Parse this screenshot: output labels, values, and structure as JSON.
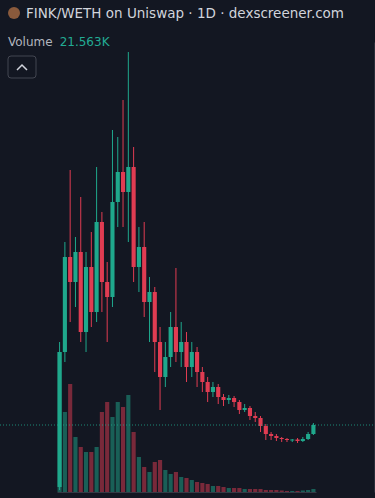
{
  "chart_data": {
    "type": "candlestick",
    "title": "FINK/WETH on Uniswap · 1D · dexscreener.com",
    "categories": [
      null,
      null,
      null,
      null,
      null,
      null,
      null,
      null,
      null,
      null,
      null,
      null,
      null,
      null,
      null,
      null,
      null,
      null,
      null,
      null,
      null,
      null,
      null,
      null,
      null,
      null,
      null,
      null,
      null,
      null,
      null,
      null,
      null,
      null,
      null,
      null,
      null,
      null,
      null,
      null,
      null,
      null,
      null,
      null,
      null,
      null,
      null,
      null,
      null
    ],
    "ylim": [
      0,
      450
    ],
    "y2lim": [
      0,
      3240000
    ],
    "tick_labels": false,
    "legend": "top-left",
    "series": [
      {
        "type": "candlestick",
        "open": [
          5,
          140,
          235,
          210,
          240,
          160,
          225,
          180,
          270,
          210,
          195,
          290,
          320,
          300,
          325,
          225,
          245,
          190,
          200,
          150,
          115,
          135,
          165,
          140,
          150,
          125,
          140,
          120,
          110,
          100,
          105,
          95,
          92,
          94,
          90,
          82,
          84,
          76,
          74,
          66,
          58,
          56,
          54,
          53,
          52,
          52.5,
          51,
          53,
          58
        ],
        "high": [
          150,
          250,
          322,
          255,
          295,
          240,
          260,
          325,
          280,
          230,
          362,
          355,
          392,
          440,
          345,
          265,
          270,
          215,
          205,
          165,
          150,
          180,
          224,
          170,
          160,
          150,
          145,
          125,
          115,
          110,
          108,
          98,
          97,
          96,
          92,
          88,
          86,
          80,
          76,
          68,
          60,
          58,
          55,
          54,
          53,
          54,
          55,
          60,
          69
        ],
        "low": [
          2,
          130,
          170,
          185,
          150,
          140,
          165,
          170,
          180,
          150,
          185,
          265,
          265,
          250,
          210,
          200,
          175,
          150,
          120,
          82,
          105,
          125,
          130,
          125,
          110,
          115,
          105,
          100,
          90,
          95,
          88,
          86,
          88,
          85,
          78,
          80,
          72,
          70,
          60,
          52,
          52,
          51,
          50,
          50,
          50,
          49,
          50,
          52,
          57
        ],
        "close": [
          140,
          235,
          210,
          240,
          160,
          225,
          180,
          270,
          210,
          195,
          290,
          320,
          300,
          325,
          225,
          245,
          190,
          200,
          150,
          115,
          135,
          165,
          140,
          150,
          125,
          140,
          120,
          110,
          100,
          105,
          95,
          92,
          94,
          90,
          82,
          84,
          76,
          74,
          66,
          58,
          56,
          54,
          53,
          52,
          52.5,
          51,
          53,
          58,
          67
        ],
        "colors": [
          "#1fa88c",
          "#1fa88c",
          "#e03c52",
          "#1fa88c",
          "#e03c52",
          "#1fa88c",
          "#e03c52",
          "#1fa88c",
          "#e03c52",
          "#e03c52",
          "#1fa88c",
          "#1fa88c",
          "#e03c52",
          "#1fa88c",
          "#e03c52",
          "#1fa88c",
          "#e03c52",
          "#1fa88c",
          "#e03c52",
          "#e03c52",
          "#1fa88c",
          "#1fa88c",
          "#e03c52",
          "#1fa88c",
          "#e03c52",
          "#1fa88c",
          "#e03c52",
          "#e03c52",
          "#e03c52",
          "#1fa88c",
          "#e03c52",
          "#e03c52",
          "#1fa88c",
          "#e03c52",
          "#e03c52",
          "#1fa88c",
          "#e03c52",
          "#e03c52",
          "#e03c52",
          "#e03c52",
          "#e03c52",
          "#e03c52",
          "#e03c52",
          "#e03c52",
          "#1fa88c",
          "#e03c52",
          "#1fa88c",
          "#1fa88c",
          "#1fa88c"
        ]
      },
      {
        "name": "Volume",
        "type": "bar",
        "axis": "y2",
        "values": [
          1008000,
          576000,
          777600,
          396000,
          324000,
          288000,
          288000,
          324000,
          576000,
          648000,
          540000,
          648000,
          612000,
          698400,
          432000,
          252000,
          180000,
          144000,
          216000,
          230400,
          158400,
          129600,
          144000,
          108000,
          100800,
          86400,
          72000,
          64800,
          57600,
          43200,
          43200,
          36000,
          28800,
          28800,
          28800,
          21600,
          21600,
          21600,
          21600,
          14400,
          14400,
          14400,
          10800,
          7200,
          7200,
          7200,
          10800,
          14400,
          21563
        ],
        "value_labels": [
          null,
          null,
          null,
          null,
          null,
          null,
          null,
          null,
          null,
          null,
          null,
          null,
          null,
          null,
          null,
          null,
          null,
          null,
          null,
          null,
          null,
          null,
          null,
          null,
          null,
          null,
          null,
          null,
          null,
          null,
          null,
          null,
          null,
          null,
          null,
          null,
          null,
          null,
          null,
          null,
          null,
          null,
          null,
          null,
          null,
          null,
          null,
          null,
          "21.563K"
        ]
      }
    ]
  }
}
